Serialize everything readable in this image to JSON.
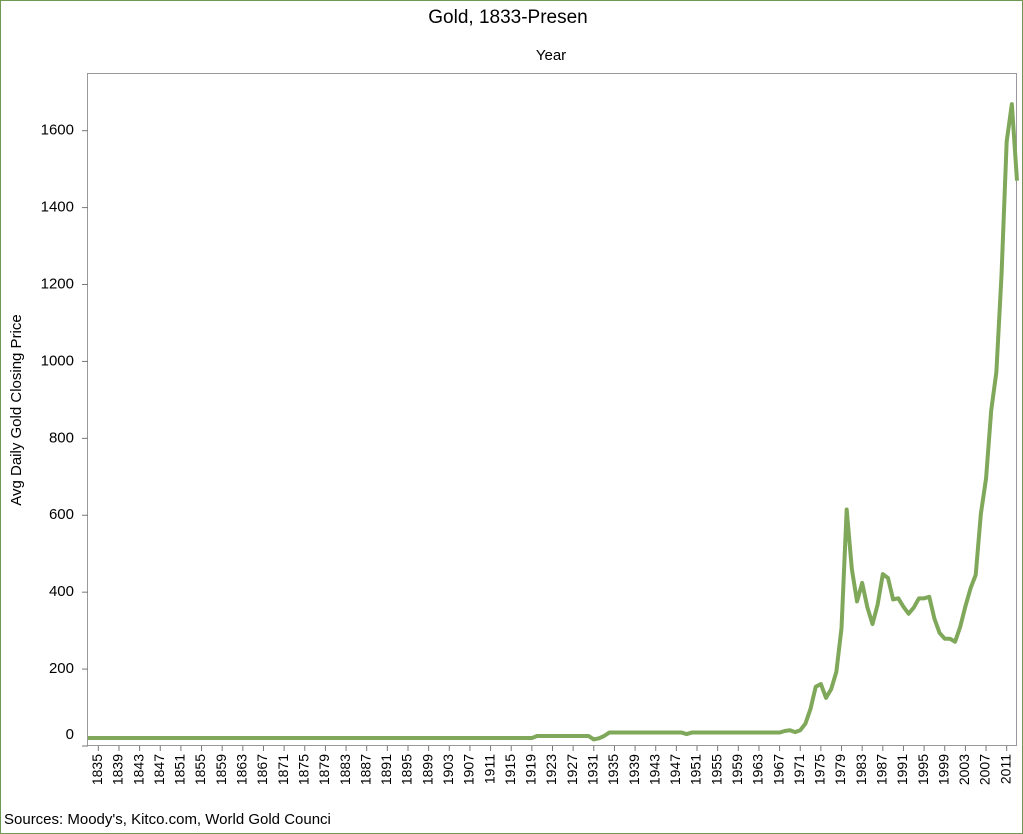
{
  "chart_data": {
    "type": "line",
    "title": "Gold, 1833-Presen",
    "xlabel": "Year",
    "ylabel": "Avg Daily Gold Closing Price",
    "source": "Sources: Moody's, Kitco.com, World Gold Counci",
    "color": "#80a85a",
    "x": [
      1833,
      1834,
      1835,
      1836,
      1837,
      1838,
      1839,
      1840,
      1841,
      1842,
      1843,
      1844,
      1845,
      1846,
      1847,
      1848,
      1849,
      1850,
      1851,
      1852,
      1853,
      1854,
      1855,
      1856,
      1857,
      1858,
      1859,
      1860,
      1861,
      1862,
      1863,
      1864,
      1865,
      1866,
      1867,
      1868,
      1869,
      1870,
      1871,
      1872,
      1873,
      1874,
      1875,
      1876,
      1877,
      1878,
      1879,
      1880,
      1881,
      1882,
      1883,
      1884,
      1885,
      1886,
      1887,
      1888,
      1889,
      1890,
      1891,
      1892,
      1893,
      1894,
      1895,
      1896,
      1897,
      1898,
      1899,
      1900,
      1901,
      1902,
      1903,
      1904,
      1905,
      1906,
      1907,
      1908,
      1909,
      1910,
      1911,
      1912,
      1913,
      1914,
      1915,
      1916,
      1917,
      1918,
      1919,
      1920,
      1921,
      1922,
      1923,
      1924,
      1925,
      1926,
      1927,
      1928,
      1929,
      1930,
      1931,
      1932,
      1933,
      1934,
      1935,
      1936,
      1937,
      1938,
      1939,
      1940,
      1941,
      1942,
      1943,
      1944,
      1945,
      1946,
      1947,
      1948,
      1949,
      1950,
      1951,
      1952,
      1953,
      1954,
      1955,
      1956,
      1957,
      1958,
      1959,
      1960,
      1961,
      1962,
      1963,
      1964,
      1965,
      1966,
      1967,
      1968,
      1969,
      1970,
      1971,
      1972,
      1973,
      1974,
      1975,
      1976,
      1977,
      1978,
      1979,
      1980,
      1981,
      1982,
      1983,
      1984,
      1985,
      1986,
      1987,
      1988,
      1989,
      1990,
      1991,
      1992,
      1993,
      1994,
      1995,
      1996,
      1997,
      1998,
      1999,
      2000,
      2001,
      2002,
      2003,
      2004,
      2005,
      2006,
      2007,
      2008,
      2009,
      2010,
      2011,
      2012,
      2013
    ],
    "values": [
      20.67,
      20.67,
      20.67,
      20.67,
      20.67,
      20.67,
      20.67,
      20.67,
      20.67,
      20.67,
      20.67,
      20.67,
      20.67,
      20.67,
      20.67,
      20.67,
      20.67,
      20.67,
      20.67,
      20.67,
      20.67,
      20.67,
      20.67,
      20.67,
      20.67,
      20.67,
      20.67,
      20.67,
      20.67,
      20.67,
      20.67,
      20.67,
      20.67,
      20.67,
      20.67,
      20.67,
      20.67,
      20.67,
      20.67,
      20.67,
      20.67,
      20.67,
      20.67,
      20.67,
      20.67,
      20.67,
      20.67,
      20.67,
      20.67,
      20.67,
      20.67,
      20.67,
      20.67,
      20.67,
      20.67,
      20.67,
      20.67,
      20.67,
      20.67,
      20.67,
      20.67,
      20.67,
      20.67,
      20.67,
      20.67,
      20.67,
      20.67,
      20.67,
      20.67,
      20.67,
      20.67,
      20.67,
      20.67,
      20.67,
      20.67,
      20.67,
      20.67,
      20.67,
      20.67,
      20.67,
      20.67,
      20.67,
      20.67,
      20.67,
      20.67,
      20.67,
      20.67,
      26,
      26,
      26,
      26,
      26,
      26,
      26,
      26,
      26,
      26,
      26,
      17,
      20,
      26,
      35,
      35,
      35,
      35,
      35,
      35,
      35,
      35,
      35,
      35,
      35,
      35,
      35,
      35,
      35,
      31,
      35,
      35,
      35,
      35,
      35,
      35,
      35,
      35,
      35,
      35,
      35,
      35,
      35,
      35,
      35,
      35,
      35,
      35,
      39,
      41,
      36,
      41,
      58,
      97,
      154,
      161,
      125,
      148,
      193,
      307,
      615,
      460,
      376,
      424,
      361,
      317,
      368,
      447,
      437,
      381,
      384,
      362,
      344,
      360,
      384,
      384,
      388,
      331,
      294,
      279,
      279,
      271,
      310,
      363,
      410,
      445,
      604,
      695,
      872,
      972,
      1225,
      1572,
      1669,
      1470
    ],
    "xlim": [
      1833,
      2013
    ],
    "xticks": [
      1835,
      1839,
      1843,
      1847,
      1851,
      1855,
      1859,
      1863,
      1867,
      1871,
      1875,
      1879,
      1883,
      1887,
      1891,
      1895,
      1899,
      1903,
      1907,
      1911,
      1915,
      1919,
      1923,
      1927,
      1931,
      1935,
      1939,
      1943,
      1947,
      1951,
      1955,
      1959,
      1963,
      1967,
      1971,
      1975,
      1979,
      1983,
      1987,
      1991,
      1995,
      1999,
      2003,
      2007,
      2011
    ],
    "ylim": [
      0,
      1750
    ],
    "yticks": [
      0,
      200,
      400,
      600,
      800,
      1000,
      1200,
      1400,
      1600
    ]
  }
}
